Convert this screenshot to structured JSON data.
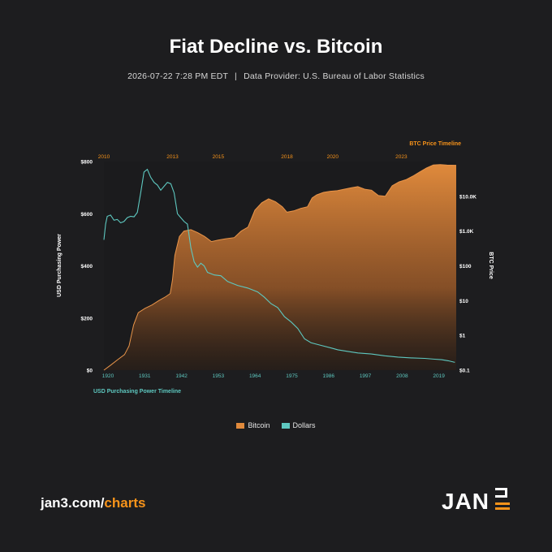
{
  "title": "Fiat Decline vs. Bitcoin",
  "subtitle": {
    "datetime": "2026-07-22 7:28 PM EDT",
    "separator": "|",
    "provider": "Data Provider: U.S. Bureau of Labor Statistics"
  },
  "colors": {
    "background": "#1d1d1f",
    "bitcoin": "#e08a3c",
    "dollars": "#5ec8c0",
    "accent": "#f7931a"
  },
  "chart_data": {
    "type": "area",
    "top_axis_title": "BTC Price Timeline",
    "bottom_axis_title": "USD Purchasing Power Timeline",
    "left_axis_title": "USD Purchasing Power",
    "right_axis_title": "BTC Price",
    "left_ticks": [
      "$800",
      "$600",
      "$400",
      "$200",
      "$0"
    ],
    "right_ticks": [
      "$10.0K",
      "$1.0K",
      "$100",
      "$10",
      "$1",
      "$0.1"
    ],
    "top_ticks": [
      "2010",
      "2013",
      "2015",
      "2018",
      "2020",
      "2023"
    ],
    "bottom_ticks": [
      "1920",
      "1931",
      "1942",
      "1953",
      "1964",
      "1975",
      "1986",
      "1997",
      "2008",
      "2019"
    ],
    "left_ylim": [
      0,
      800
    ],
    "right_scale": "log",
    "right_ylim": [
      0.1,
      100000
    ],
    "series": [
      {
        "name": "Bitcoin",
        "style": "area",
        "x": [
          2010.0,
          2010.3,
          2010.6,
          2010.9,
          2011.1,
          2011.3,
          2011.5,
          2011.8,
          2012.1,
          2012.4,
          2012.7,
          2012.9,
          2013.0,
          2013.1,
          2013.3,
          2013.5,
          2013.8,
          2014.1,
          2014.4,
          2014.7,
          2015.0,
          2015.3,
          2015.7,
          2016.0,
          2016.3,
          2016.6,
          2016.9,
          2017.2,
          2017.5,
          2017.8,
          2018.0,
          2018.3,
          2018.6,
          2018.9,
          2019.1,
          2019.3,
          2019.6,
          2019.9,
          2020.2,
          2020.5,
          2020.8,
          2021.1,
          2021.4,
          2021.7,
          2022.0,
          2022.3,
          2022.6,
          2022.9,
          2023.2,
          2023.5,
          2023.8,
          2024.1,
          2024.4,
          2024.7,
          2025.0,
          2025.4
        ],
        "y": [
          0.1,
          0.14,
          0.2,
          0.28,
          0.5,
          2.0,
          4.5,
          6.0,
          7.5,
          10,
          13,
          16,
          40,
          200,
          700,
          1000,
          1100,
          900,
          700,
          500,
          550,
          600,
          650,
          1000,
          1300,
          4000,
          6500,
          8500,
          7000,
          5000,
          3500,
          3800,
          4500,
          5000,
          9000,
          11000,
          13000,
          14000,
          14500,
          16000,
          17500,
          19000,
          16000,
          15000,
          10500,
          10000,
          20000,
          26000,
          30000,
          38000,
          50000,
          65000,
          80000,
          82000,
          79000,
          78000
        ]
      },
      {
        "name": "Dollars",
        "style": "line",
        "x": [
          1920.0,
          1920.5,
          1921.0,
          1922.0,
          1923.0,
          1924.0,
          1925.0,
          1926.0,
          1927.0,
          1928.0,
          1929.0,
          1930.0,
          1931.0,
          1932.0,
          1933.0,
          1934.0,
          1935.0,
          1936.0,
          1937.0,
          1938.0,
          1939.0,
          1940.0,
          1941.0,
          1942.0,
          1943.0,
          1944.0,
          1945.0,
          1946.0,
          1947.0,
          1948.0,
          1949.0,
          1950.0,
          1951.0,
          1952.0,
          1953.0,
          1955.0,
          1957.0,
          1960.0,
          1963.0,
          1966.0,
          1968.0,
          1970.0,
          1972.0,
          1974.0,
          1976.0,
          1978.0,
          1980.0,
          1982.0,
          1985.0,
          1988.0,
          1990.0,
          1993.0,
          1996.0,
          2000.0,
          2004.0,
          2008.0,
          2012.0,
          2016.0,
          2019.0,
          2021.0,
          2023.0,
          2025.0
        ],
        "y": [
          500,
          560,
          590,
          595,
          575,
          578,
          565,
          570,
          585,
          590,
          588,
          605,
          680,
          760,
          770,
          740,
          720,
          710,
          690,
          705,
          720,
          715,
          680,
          600,
          585,
          570,
          560,
          470,
          415,
          395,
          410,
          400,
          375,
          370,
          365,
          362,
          340,
          325,
          315,
          300,
          280,
          255,
          240,
          205,
          185,
          160,
          120,
          105,
          95,
          85,
          78,
          72,
          66,
          62,
          55,
          50,
          47,
          45,
          42,
          40,
          36,
          30
        ]
      }
    ],
    "legend": [
      "Bitcoin",
      "Dollars"
    ],
    "legend_position": "bottom",
    "grid": false
  },
  "footer": {
    "url_prefix": "jan3.com/",
    "url_accent": "charts",
    "logo_text": "JAN"
  }
}
